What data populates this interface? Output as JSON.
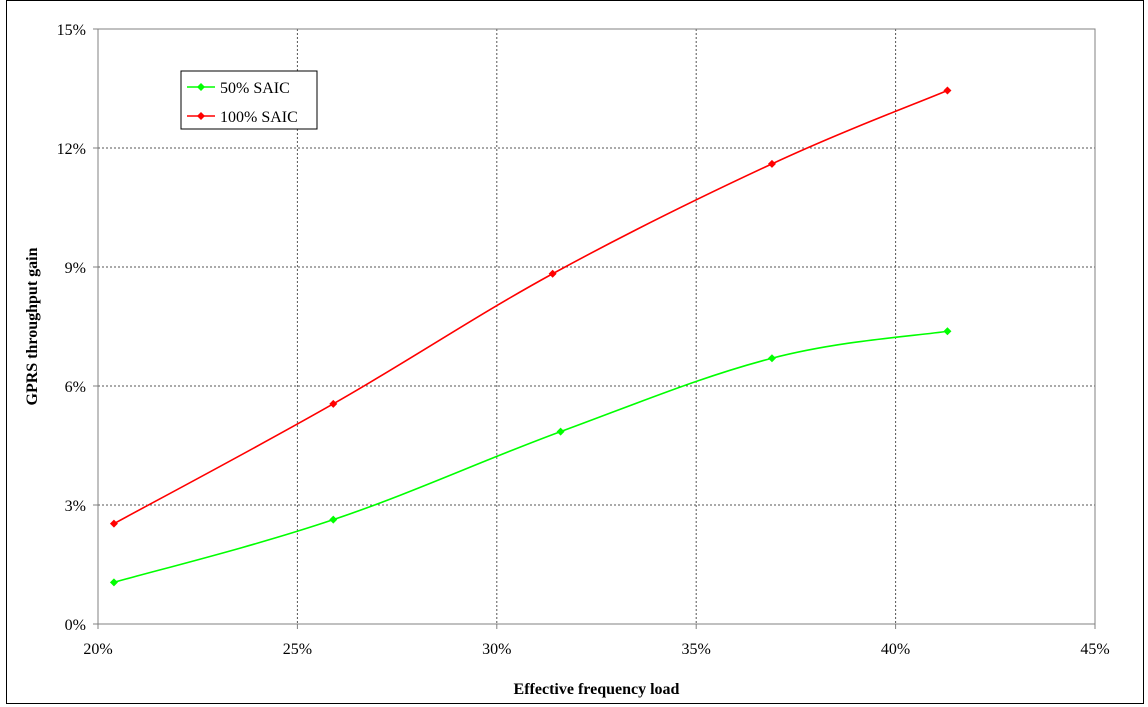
{
  "chart_data": {
    "type": "line",
    "title": "",
    "xlabel": "Effective frequency load",
    "ylabel": "GPRS throughput gain",
    "xlim": [
      20,
      45
    ],
    "ylim": [
      0,
      15
    ],
    "x_ticks": [
      "20%",
      "25%",
      "30%",
      "35%",
      "40%",
      "45%"
    ],
    "y_ticks": [
      "0%",
      "3%",
      "6%",
      "9%",
      "12%",
      "15%"
    ],
    "grid": true,
    "legend_position": "top-left",
    "series": [
      {
        "name": "50% SAIC",
        "color": "#00ff00",
        "x": [
          20.4,
          25.9,
          31.6,
          36.9,
          41.3
        ],
        "y": [
          1.05,
          2.63,
          4.85,
          6.7,
          7.38
        ]
      },
      {
        "name": "100% SAIC",
        "color": "#ff0000",
        "x": [
          20.4,
          25.9,
          31.4,
          36.9,
          41.3
        ],
        "y": [
          2.53,
          5.55,
          8.83,
          11.6,
          13.45
        ]
      }
    ]
  }
}
